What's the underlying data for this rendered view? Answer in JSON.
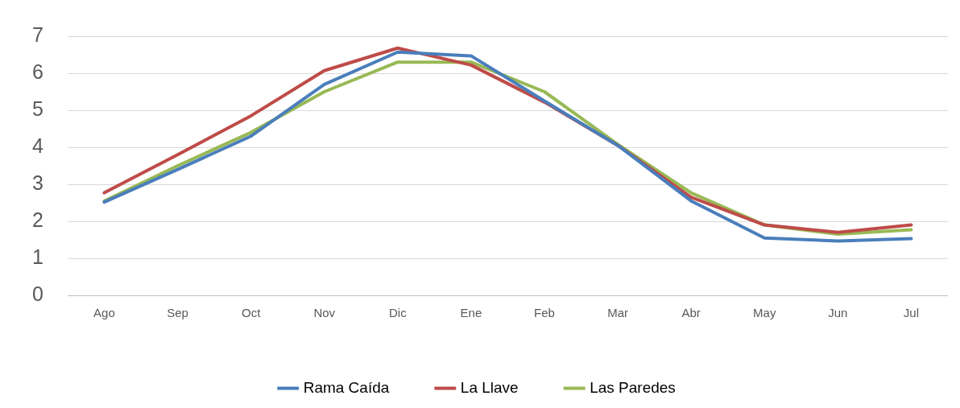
{
  "chart_data": {
    "type": "line",
    "categories": [
      "Ago",
      "Sep",
      "Oct",
      "Nov",
      "Dic",
      "Ene",
      "Feb",
      "Mar",
      "Abr",
      "May",
      "Jun",
      "Jul"
    ],
    "series": [
      {
        "name": "Rama Caída",
        "color": "#4a7ebb",
        "values": [
          2.52,
          3.4,
          4.3,
          5.7,
          6.57,
          6.47,
          5.25,
          4.05,
          2.55,
          1.55,
          1.47,
          1.53
        ]
      },
      {
        "name": "La Llave",
        "color": "#be4b48",
        "values": [
          2.77,
          3.8,
          4.85,
          6.07,
          6.68,
          6.22,
          5.22,
          4.05,
          2.65,
          1.9,
          1.7,
          1.9
        ]
      },
      {
        "name": "Las Paredes",
        "color": "#98b954",
        "values": [
          2.55,
          3.5,
          4.4,
          5.5,
          6.3,
          6.3,
          5.5,
          4.08,
          2.77,
          1.9,
          1.65,
          1.77
        ]
      }
    ],
    "ylim": [
      0,
      7
    ],
    "yticks": [
      0,
      1,
      2,
      3,
      4,
      5,
      6,
      7
    ],
    "grid": "y",
    "legend": "bottom",
    "marker": "none",
    "line_style": "solid"
  }
}
